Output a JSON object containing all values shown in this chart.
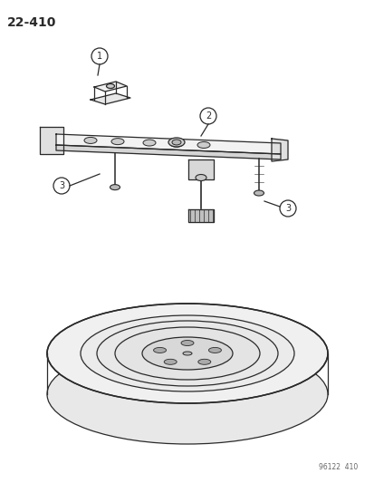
{
  "title": "22–410",
  "subtitle": "96122  410",
  "background_color": "#ffffff",
  "line_color": "#2a2a2a",
  "fig_width": 4.14,
  "fig_height": 5.33,
  "dpi": 100
}
